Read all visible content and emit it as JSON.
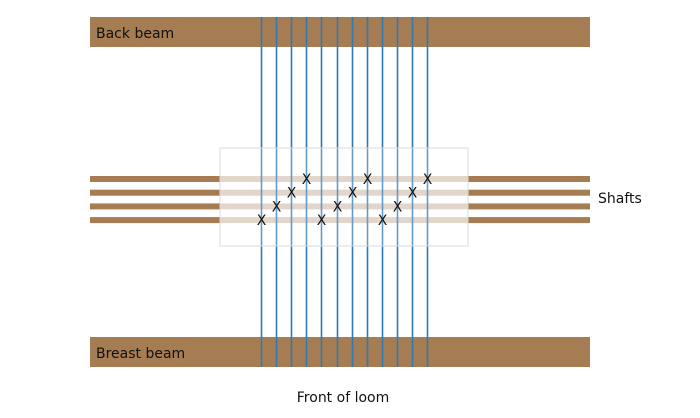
{
  "labels": {
    "back_beam": "Back beam",
    "breast_beam": "Breast beam",
    "shafts": "Shafts",
    "front": "Front of loom"
  },
  "colors": {
    "beam": "#a67c52",
    "warp": "#2e7ab8",
    "shaft_overlay": "#d8c9b8",
    "frame_border": "#d9d9d9"
  },
  "threading": {
    "shaft_count": 4,
    "warp_count": 12,
    "mark_symbol": "X",
    "threads": [
      {
        "end": 1,
        "shaft": 4
      },
      {
        "end": 2,
        "shaft": 3
      },
      {
        "end": 3,
        "shaft": 2
      },
      {
        "end": 4,
        "shaft": 1
      },
      {
        "end": 5,
        "shaft": 4
      },
      {
        "end": 6,
        "shaft": 3
      },
      {
        "end": 7,
        "shaft": 2
      },
      {
        "end": 8,
        "shaft": 1
      },
      {
        "end": 9,
        "shaft": 4
      },
      {
        "end": 10,
        "shaft": 3
      },
      {
        "end": 11,
        "shaft": 2
      },
      {
        "end": 12,
        "shaft": 1
      }
    ]
  }
}
